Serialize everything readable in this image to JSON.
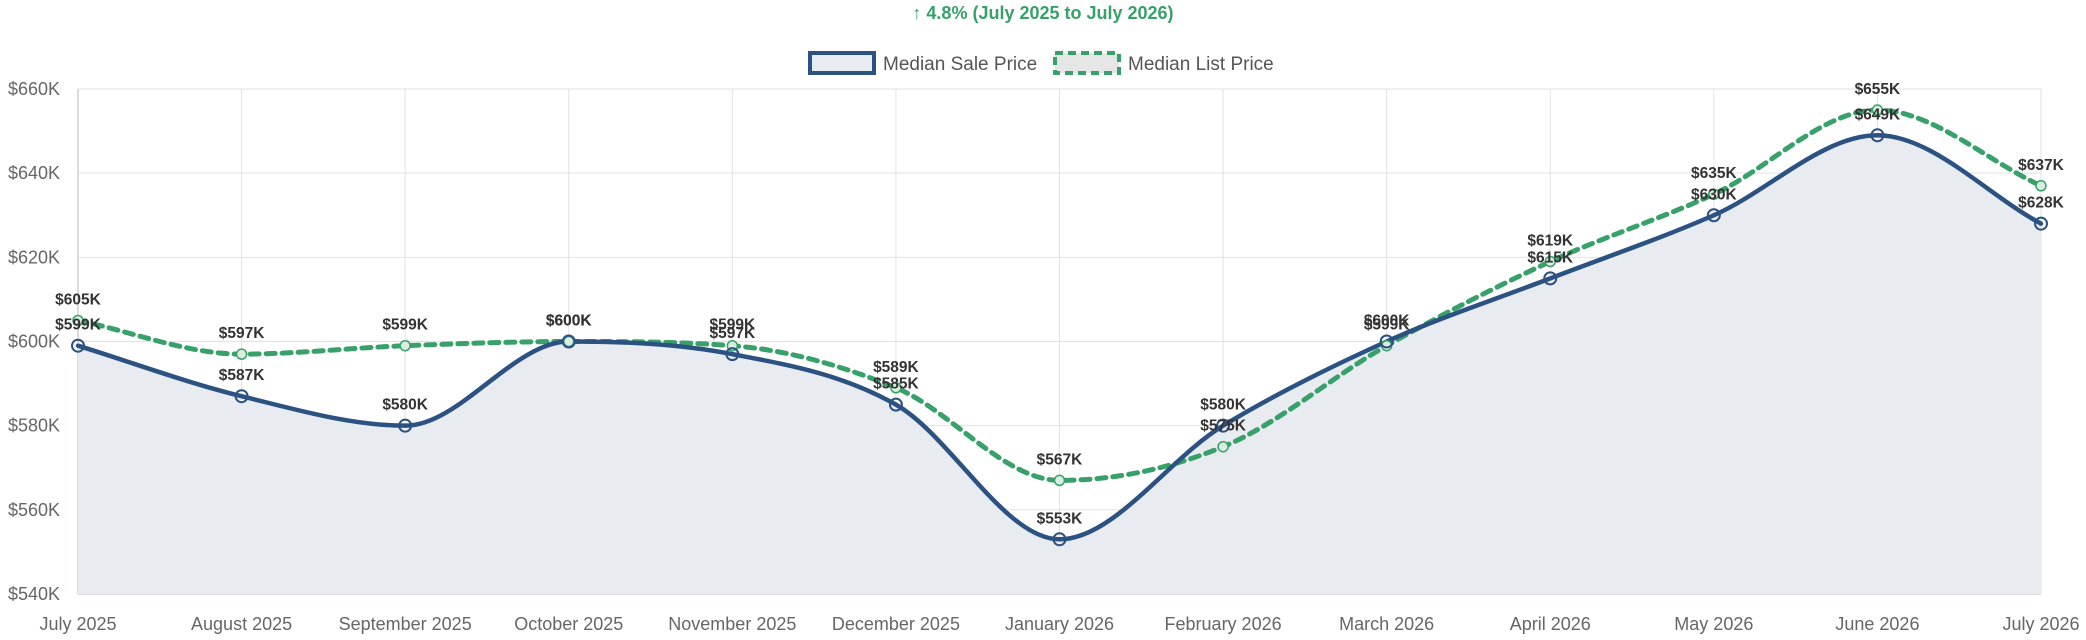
{
  "chart_data": {
    "type": "line",
    "subtitle": "↑ 4.8% (July 2025 to July 2026)",
    "categories": [
      "July 2025",
      "August 2025",
      "September 2025",
      "October 2025",
      "November 2025",
      "December 2025",
      "January 2026",
      "February 2026",
      "March 2026",
      "April 2026",
      "May 2026",
      "June 2026",
      "July 2026"
    ],
    "ylim": [
      540000,
      660000
    ],
    "yticks": [
      {
        "value": 540000,
        "label": "$540K"
      },
      {
        "value": 560000,
        "label": "$560K"
      },
      {
        "value": 580000,
        "label": "$580K"
      },
      {
        "value": 600000,
        "label": "$600K"
      },
      {
        "value": 620000,
        "label": "$620K"
      },
      {
        "value": 640000,
        "label": "$640K"
      },
      {
        "value": 660000,
        "label": "$660K"
      }
    ],
    "grid": true,
    "legend_position": "top",
    "series": [
      {
        "name": "Median Sale Price",
        "color": "#2c5282",
        "fill": "#e8ebf0",
        "style": "solid",
        "values": [
          599000,
          587000,
          580000,
          600000,
          597000,
          585000,
          553000,
          580000,
          600000,
          615000,
          630000,
          649000,
          628000
        ],
        "labels": [
          "$599K",
          "$587K",
          "$580K",
          "$600K",
          "$597K",
          "$585K",
          "$553K",
          "$580K",
          "$600K",
          "$615K",
          "$630K",
          "$649K",
          "$628K"
        ]
      },
      {
        "name": "Median List Price",
        "color": "#38a169",
        "fill": "#e6e6e6",
        "style": "dashed",
        "values": [
          605000,
          597000,
          599000,
          600000,
          599000,
          589000,
          567000,
          575000,
          599000,
          619000,
          635000,
          655000,
          637000
        ],
        "labels": [
          "$605K",
          "$597K",
          "$599K",
          "$600K",
          "$599K",
          "$589K",
          "$567K",
          "$575K",
          "$599K",
          "$619K",
          "$635K",
          "$655K",
          "$637K"
        ]
      }
    ],
    "colors": {
      "subtitle": "#38a169",
      "grid": "#e2e2e2",
      "axis": "#d0d0d0"
    }
  }
}
